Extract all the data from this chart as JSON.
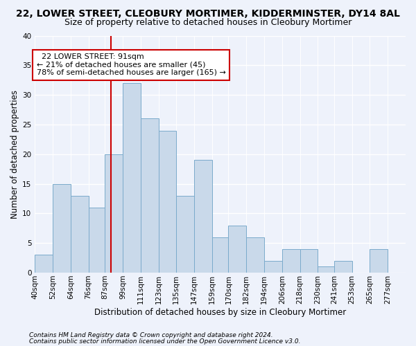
{
  "title": "22, LOWER STREET, CLEOBURY MORTIMER, KIDDERMINSTER, DY14 8AL",
  "subtitle": "Size of property relative to detached houses in Cleobury Mortimer",
  "xlabel": "Distribution of detached houses by size in Cleobury Mortimer",
  "ylabel": "Number of detached properties",
  "footer1": "Contains HM Land Registry data © Crown copyright and database right 2024.",
  "footer2": "Contains public sector information licensed under the Open Government Licence v3.0.",
  "annotation_title": "22 LOWER STREET: 91sqm",
  "annotation_line1": "← 21% of detached houses are smaller (45)",
  "annotation_line2": "78% of semi-detached houses are larger (165) →",
  "property_line_x": 91,
  "bins": [
    40,
    52,
    64,
    76,
    87,
    99,
    111,
    123,
    135,
    147,
    159,
    170,
    182,
    194,
    206,
    218,
    230,
    241,
    253,
    265,
    277
  ],
  "values": [
    3,
    15,
    13,
    11,
    20,
    32,
    26,
    24,
    13,
    19,
    6,
    8,
    6,
    2,
    4,
    4,
    1,
    2,
    0,
    4
  ],
  "bar_color": "#c9d9ea",
  "bar_edge_color": "#7aaacb",
  "line_color": "#cc0000",
  "ylim": [
    0,
    40
  ],
  "yticks": [
    0,
    5,
    10,
    15,
    20,
    25,
    30,
    35,
    40
  ],
  "bg_color": "#eef2fb",
  "grid_color": "#ffffff",
  "annotation_box_color": "#ffffff",
  "annotation_box_edge": "#cc0000",
  "title_fontsize": 10,
  "subtitle_fontsize": 9,
  "xlabel_fontsize": 8.5,
  "ylabel_fontsize": 8.5,
  "tick_fontsize": 7.5,
  "footer_fontsize": 6.5,
  "annotation_fontsize": 8
}
